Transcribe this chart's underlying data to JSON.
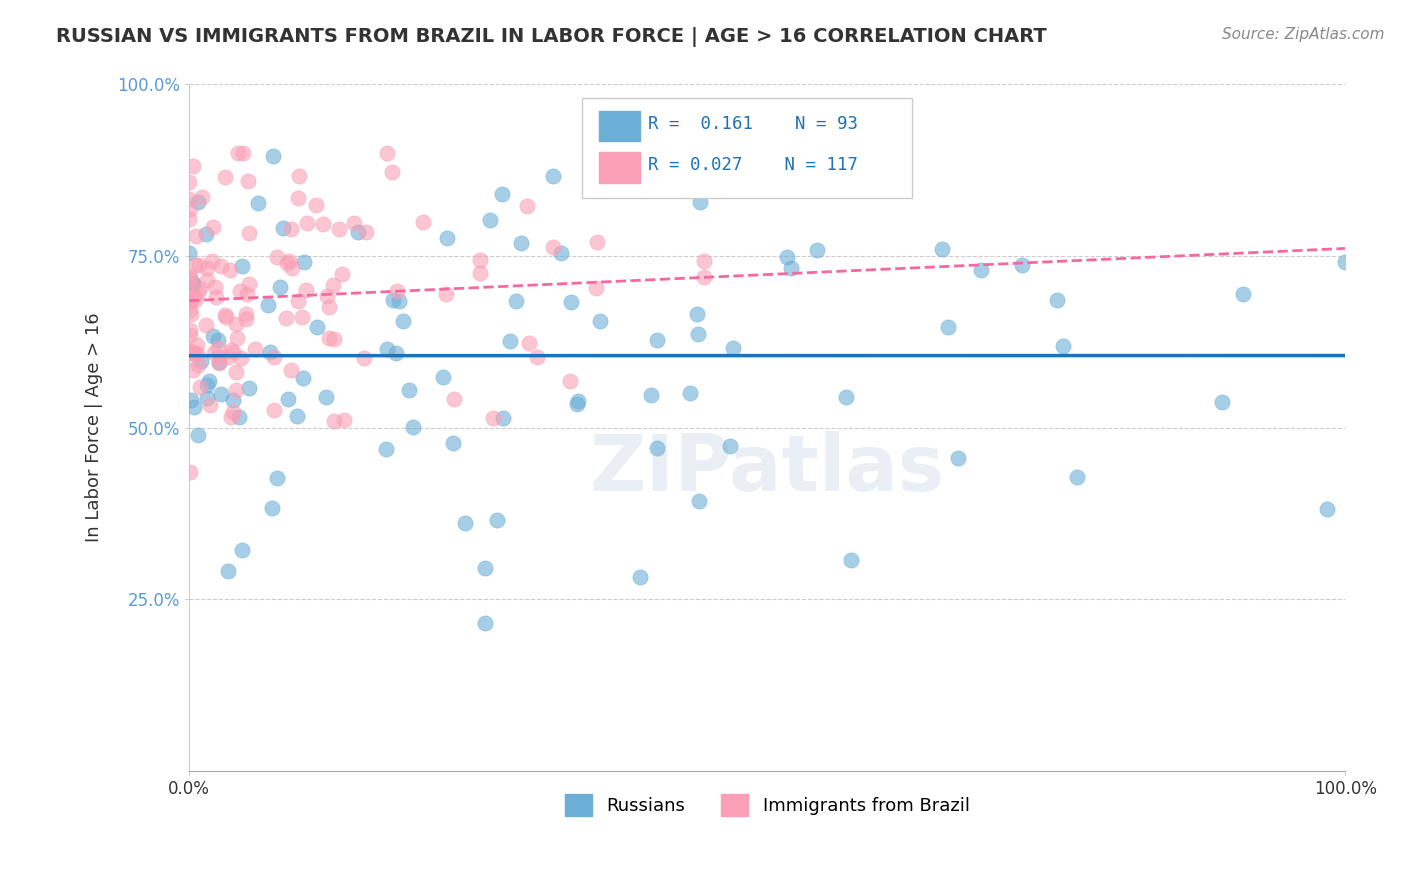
{
  "title": "RUSSIAN VS IMMIGRANTS FROM BRAZIL IN LABOR FORCE | AGE > 16 CORRELATION CHART",
  "source": "Source: ZipAtlas.com",
  "ylabel": "In Labor Force | Age > 16",
  "xlim": [
    0.0,
    1.0
  ],
  "ylim": [
    0.0,
    1.0
  ],
  "blue_R": 0.161,
  "blue_N": 93,
  "pink_R": 0.027,
  "pink_N": 117,
  "blue_color": "#6baed6",
  "pink_color": "#fa9fb5",
  "blue_line_color": "#2171b5",
  "pink_line_color": "#f768a1",
  "watermark": "ZIPatlas",
  "background_color": "#ffffff",
  "grid_color": "#cccccc",
  "legend_label_blue": "Russians",
  "legend_label_pink": "Immigrants from Brazil"
}
